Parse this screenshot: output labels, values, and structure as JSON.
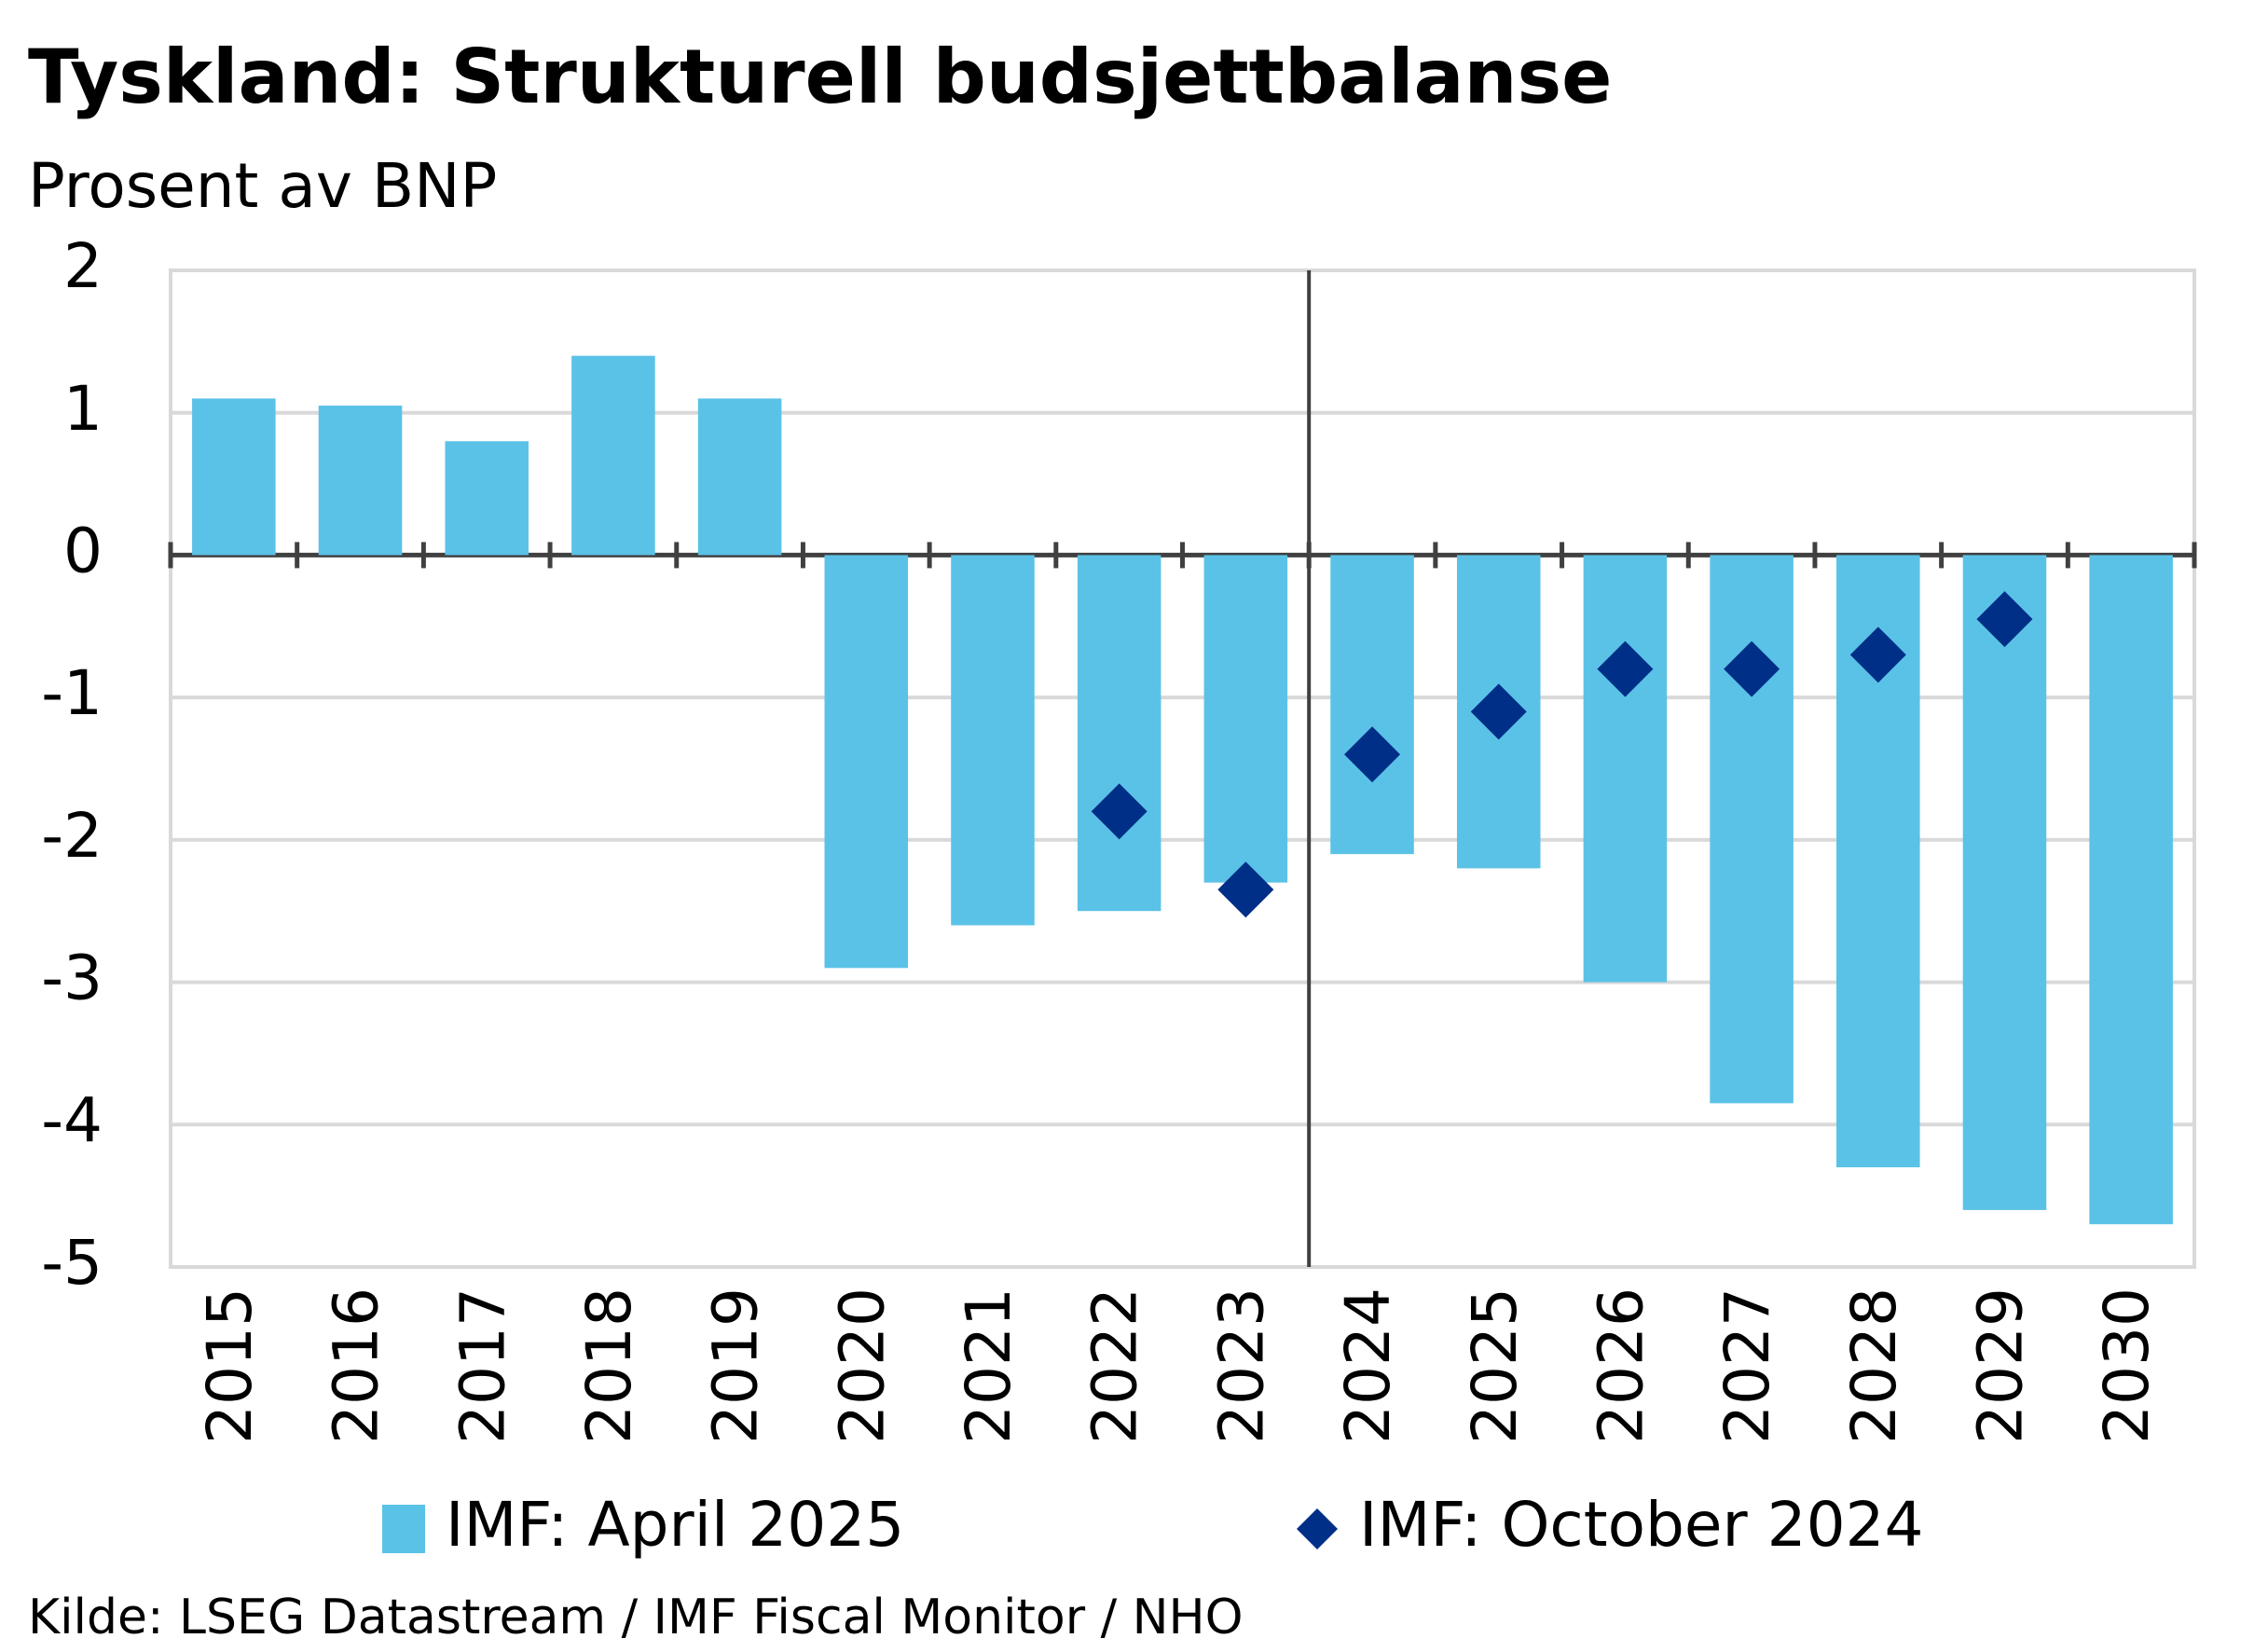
{
  "chart_data": {
    "type": "bar",
    "title": "Tyskland: Strukturell budsjettbalanse",
    "subtitle": "Prosent av BNP",
    "source": "Kilde: LSEG Datastream / IMF Fiscal Monitor / NHO",
    "categories": [
      "2015",
      "2016",
      "2017",
      "2018",
      "2019",
      "2020",
      "2021",
      "2022",
      "2023",
      "2024",
      "2025",
      "2026",
      "2027",
      "2028",
      "2029",
      "2030"
    ],
    "series": [
      {
        "name": "IMF: April 2025",
        "color": "#5bc2e7",
        "marker": "bar",
        "values": [
          1.1,
          1.05,
          0.8,
          1.4,
          1.1,
          -2.9,
          -2.6,
          -2.5,
          -2.3,
          -2.1,
          -2.2,
          -3.0,
          -3.85,
          -4.3,
          -4.6,
          -4.7
        ]
      },
      {
        "name": "IMF: October 2024",
        "color": "#002f87",
        "marker": "diamond",
        "values": [
          null,
          null,
          null,
          null,
          null,
          null,
          null,
          -1.8,
          -2.35,
          -1.4,
          -1.1,
          -0.8,
          -0.8,
          -0.7,
          -0.45,
          null
        ]
      }
    ],
    "ylim": [
      -5,
      2
    ],
    "yticks": [
      -5,
      -4,
      -3,
      -2,
      -1,
      0,
      1,
      2
    ],
    "grid": true
  }
}
